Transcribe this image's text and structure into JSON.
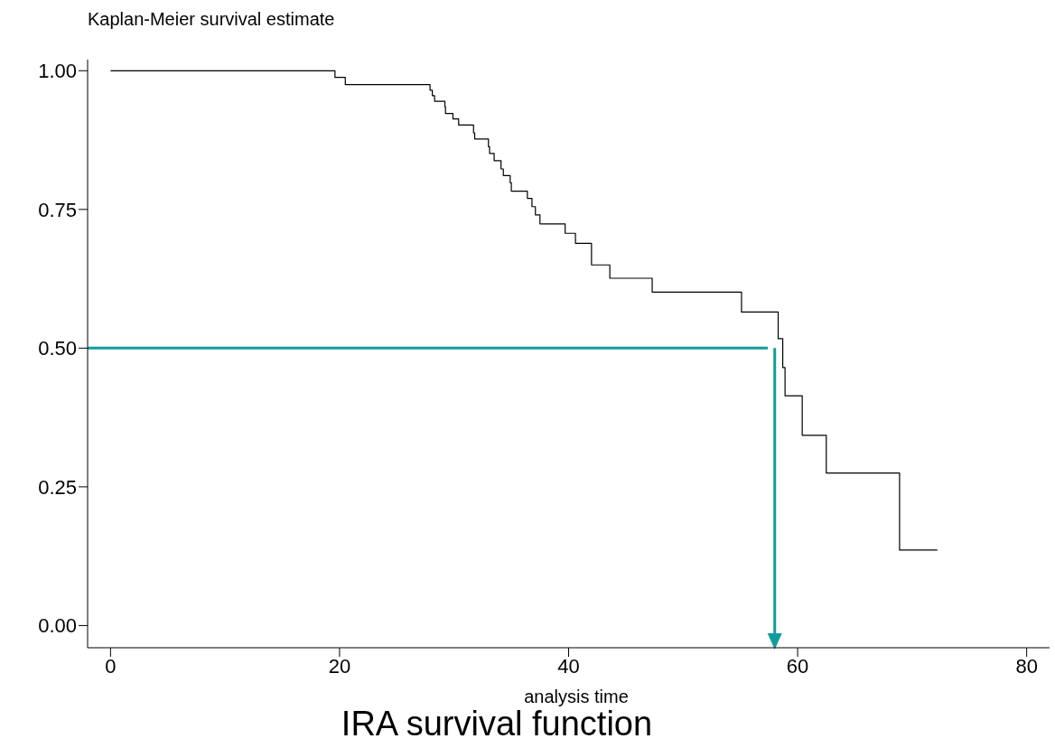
{
  "chart_data": {
    "type": "step",
    "title": "Kaplan-Meier survival estimate",
    "xlabel": "analysis time",
    "annotations": [
      "IRA survival function"
    ],
    "x": [
      0,
      19.6,
      20.5,
      27.9,
      28.1,
      28.3,
      29.2,
      29.25,
      29.9,
      30.4,
      31.7,
      31.8,
      33.0,
      33.1,
      33.5,
      34.1,
      34.3,
      34.9,
      35.0,
      36.4,
      36.8,
      37.1,
      37.5,
      39.7,
      40.6,
      42.0,
      43.6,
      47.3,
      55.1,
      58.3,
      58.7,
      58.9,
      60.4,
      62.5,
      68.9,
      72.2
    ],
    "series": [
      {
        "color": "#000000",
        "values": [
          1.0,
          0.988,
          0.975,
          0.965,
          0.955,
          0.945,
          0.935,
          0.923,
          0.913,
          0.902,
          0.888,
          0.877,
          0.863,
          0.851,
          0.838,
          0.823,
          0.811,
          0.798,
          0.783,
          0.77,
          0.755,
          0.74,
          0.724,
          0.707,
          0.689,
          0.65,
          0.626,
          0.601,
          0.565,
          0.517,
          0.465,
          0.414,
          0.343,
          0.275,
          0.136,
          0.136
        ]
      }
    ],
    "xlim": [
      -2,
      82
    ],
    "xticks": [
      0,
      20,
      40,
      60,
      80
    ],
    "ylim": [
      -0.04,
      1.02
    ],
    "yticks": [
      {
        "value": 0,
        "label": "0.00"
      },
      {
        "value": 0.25,
        "label": "0.25"
      },
      {
        "value": 0.5,
        "label": "0.50"
      },
      {
        "value": 0.75,
        "label": "0.75"
      },
      {
        "value": 1,
        "label": "1.00"
      }
    ],
    "ref_lines": [
      {
        "axis": "y",
        "value": 0.5,
        "color": "#109c9c"
      },
      {
        "axis": "x",
        "value": 58,
        "color": "#109c9c"
      }
    ],
    "marker": "none",
    "line_style": "solid"
  }
}
